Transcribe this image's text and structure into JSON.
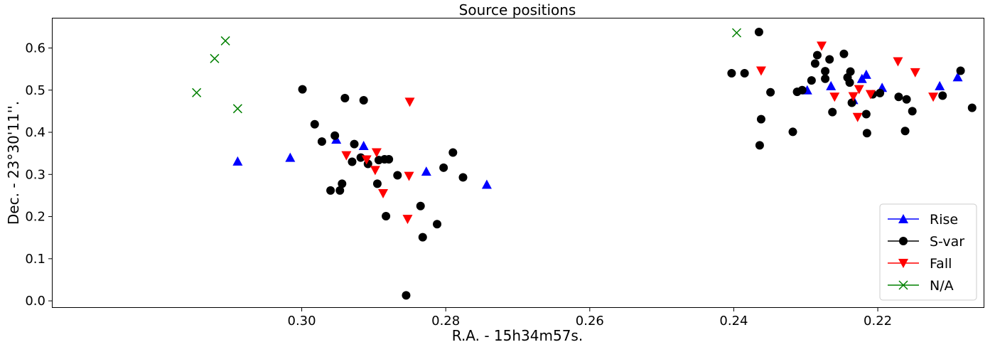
{
  "chart_data": {
    "type": "scatter",
    "title": "Source positions",
    "xlabel": "R.A. - 15h34m57s.",
    "ylabel": "Dec. - 23$^\\circ$30'11''.",
    "ylabel_display": "Dec. - 23°30'11''.",
    "x_inverted": true,
    "xlim": [
      0.3346,
      0.2053
    ],
    "ylim": [
      -0.015,
      0.67
    ],
    "x_ticks": [
      0.3,
      0.28,
      0.26,
      0.24,
      0.22
    ],
    "x_tick_labels": [
      "0.30",
      "0.28",
      "0.26",
      "0.24",
      "0.22"
    ],
    "y_ticks": [
      0.0,
      0.1,
      0.2,
      0.3,
      0.4,
      0.5,
      0.6
    ],
    "y_tick_labels": [
      "0.0",
      "0.1",
      "0.2",
      "0.3",
      "0.4",
      "0.5",
      "0.6"
    ],
    "grid": false,
    "legend_position": "bottom-right",
    "series": [
      {
        "name": "Rise",
        "marker": "triangle-up",
        "color": "#0000ff",
        "points": [
          [
            0.3089,
            0.331
          ],
          [
            0.3016,
            0.34
          ],
          [
            0.2952,
            0.383
          ],
          [
            0.2914,
            0.368
          ],
          [
            0.2827,
            0.307
          ],
          [
            0.2743,
            0.276
          ],
          [
            0.2298,
            0.5
          ],
          [
            0.2265,
            0.51
          ],
          [
            0.2234,
            0.477
          ],
          [
            0.2222,
            0.527
          ],
          [
            0.2216,
            0.537
          ],
          [
            0.2194,
            0.506
          ],
          [
            0.2114,
            0.51
          ],
          [
            0.2089,
            0.531
          ]
        ]
      },
      {
        "name": "S-var",
        "marker": "circle",
        "color": "#000000",
        "points": [
          [
            0.2999,
            0.502
          ],
          [
            0.2982,
            0.419
          ],
          [
            0.2972,
            0.378
          ],
          [
            0.296,
            0.262
          ],
          [
            0.2954,
            0.392
          ],
          [
            0.2947,
            0.262
          ],
          [
            0.2944,
            0.278
          ],
          [
            0.294,
            0.481
          ],
          [
            0.293,
            0.33
          ],
          [
            0.2927,
            0.372
          ],
          [
            0.2918,
            0.34
          ],
          [
            0.2914,
            0.476
          ],
          [
            0.2908,
            0.325
          ],
          [
            0.2895,
            0.278
          ],
          [
            0.2893,
            0.334
          ],
          [
            0.2885,
            0.336
          ],
          [
            0.2883,
            0.201
          ],
          [
            0.2879,
            0.336
          ],
          [
            0.2867,
            0.298
          ],
          [
            0.2855,
            0.013
          ],
          [
            0.2835,
            0.225
          ],
          [
            0.2832,
            0.151
          ],
          [
            0.2812,
            0.182
          ],
          [
            0.2803,
            0.316
          ],
          [
            0.279,
            0.352
          ],
          [
            0.2776,
            0.293
          ],
          [
            0.2403,
            0.54
          ],
          [
            0.2385,
            0.54
          ],
          [
            0.2365,
            0.638
          ],
          [
            0.2364,
            0.369
          ],
          [
            0.2362,
            0.431
          ],
          [
            0.2349,
            0.495
          ],
          [
            0.2318,
            0.401
          ],
          [
            0.2312,
            0.496
          ],
          [
            0.2305,
            0.5
          ],
          [
            0.2292,
            0.523
          ],
          [
            0.2287,
            0.563
          ],
          [
            0.2284,
            0.583
          ],
          [
            0.2273,
            0.545
          ],
          [
            0.2273,
            0.527
          ],
          [
            0.2267,
            0.573
          ],
          [
            0.2263,
            0.448
          ],
          [
            0.2247,
            0.586
          ],
          [
            0.2242,
            0.53
          ],
          [
            0.2239,
            0.518
          ],
          [
            0.2238,
            0.544
          ],
          [
            0.2236,
            0.47
          ],
          [
            0.2216,
            0.443
          ],
          [
            0.2215,
            0.398
          ],
          [
            0.2207,
            0.49
          ],
          [
            0.2197,
            0.493
          ],
          [
            0.2171,
            0.484
          ],
          [
            0.2162,
            0.403
          ],
          [
            0.216,
            0.478
          ],
          [
            0.2152,
            0.45
          ],
          [
            0.211,
            0.487
          ],
          [
            0.2085,
            0.546
          ],
          [
            0.2069,
            0.458
          ]
        ]
      },
      {
        "name": "Fall",
        "marker": "triangle-down",
        "color": "#ff0000",
        "points": [
          [
            0.2938,
            0.345
          ],
          [
            0.291,
            0.335
          ],
          [
            0.2896,
            0.352
          ],
          [
            0.2887,
            0.255
          ],
          [
            0.2898,
            0.31
          ],
          [
            0.2851,
            0.296
          ],
          [
            0.2853,
            0.194
          ],
          [
            0.285,
            0.472
          ],
          [
            0.2362,
            0.546
          ],
          [
            0.2278,
            0.605
          ],
          [
            0.226,
            0.484
          ],
          [
            0.2234,
            0.485
          ],
          [
            0.2228,
            0.436
          ],
          [
            0.2226,
            0.502
          ],
          [
            0.221,
            0.49
          ],
          [
            0.2172,
            0.568
          ],
          [
            0.2148,
            0.542
          ],
          [
            0.2123,
            0.484
          ]
        ]
      },
      {
        "name": "N/A",
        "marker": "x",
        "color": "#008000",
        "points": [
          [
            0.3146,
            0.494
          ],
          [
            0.3121,
            0.575
          ],
          [
            0.3106,
            0.617
          ],
          [
            0.3089,
            0.456
          ],
          [
            0.2396,
            0.636
          ]
        ]
      }
    ]
  }
}
